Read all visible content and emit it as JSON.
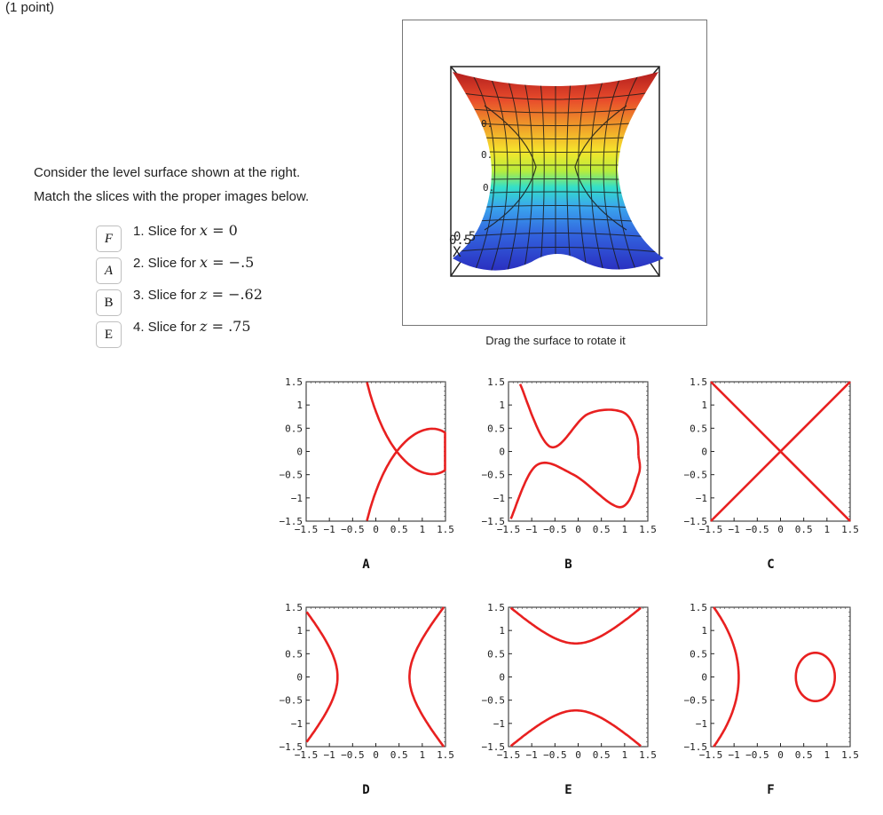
{
  "problem": {
    "points": "(1 point)",
    "intro_line1": "Consider the level surface shown at the right.",
    "intro_line2": "Match the slices with the proper images below."
  },
  "questions": [
    {
      "answer": "F",
      "label": "1. Slice for",
      "var": "x",
      "value": "0"
    },
    {
      "answer": "A",
      "label": "2. Slice for",
      "var": "x",
      "value": "−.5"
    },
    {
      "answer": "B",
      "label": "3. Slice for",
      "var": "z",
      "value": "−.62"
    },
    {
      "answer": "E",
      "label": "4. Slice for",
      "var": "z",
      "value": ".75"
    }
  ],
  "viewer": {
    "caption": "Drag the surface to rotate it",
    "axis_labels": [
      "0.",
      "0.",
      "0.",
      "0.5",
      "0.5",
      "X"
    ],
    "colormap": [
      "#b31e1e",
      "#e84b2b",
      "#f0a02a",
      "#f6e52c",
      "#b6ec3c",
      "#33e0c8",
      "#3aa6ee",
      "#3263de",
      "#2a2fc0"
    ]
  },
  "plots": [
    {
      "label": "A",
      "color": "#e82020"
    },
    {
      "label": "B",
      "color": "#e82020"
    },
    {
      "label": "C",
      "color": "#e82020"
    },
    {
      "label": "D",
      "color": "#e82020"
    },
    {
      "label": "E",
      "color": "#e82020"
    },
    {
      "label": "F",
      "color": "#e82020"
    }
  ],
  "axis": {
    "yticks": [
      "1.5",
      "1",
      "0.5",
      "0",
      "−0.5",
      "−1",
      "−1.5"
    ],
    "xticks": [
      "−1.5",
      "−1",
      "−0.5",
      "0",
      "0.5",
      "1",
      "1.5"
    ]
  }
}
